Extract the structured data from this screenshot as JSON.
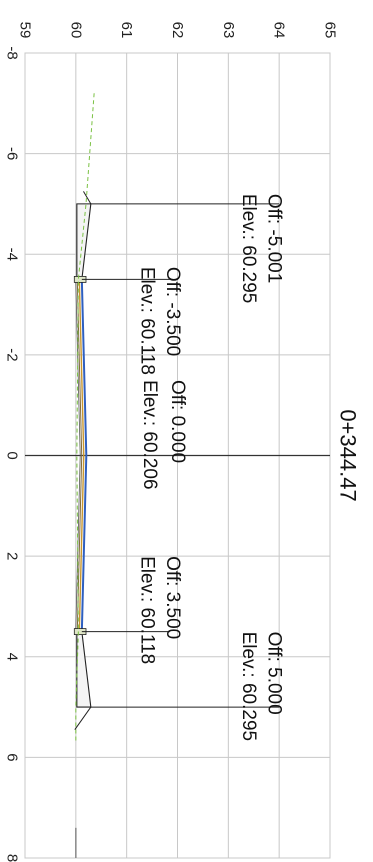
{
  "chart_data": {
    "type": "line",
    "title": "0+344.47",
    "xlabel": "",
    "ylabel": "",
    "grid": true,
    "orientation": "rotated-90-clockwise",
    "xlim": [
      -8,
      8
    ],
    "ylim": [
      59,
      65
    ],
    "x_ticks": [
      "-8",
      "-6",
      "-4",
      "-2",
      "0",
      "2",
      "4",
      "6",
      "8"
    ],
    "y_ticks": [
      "59",
      "60",
      "61",
      "62",
      "63",
      "64",
      "65"
    ],
    "colors": {
      "grid": "#c8c8c8",
      "axis": "#333333",
      "pavement_top": "#2e5fc0",
      "pavement_layer": "#c8962e",
      "ground": "#7ac143",
      "outline": "#222222"
    },
    "series": [
      {
        "values": [
          {
            "x": -5.001,
            "y": 60.295
          },
          {
            "x": -3.5,
            "y": 60.118
          },
          {
            "x": 0.0,
            "y": 60.206
          },
          {
            "x": 3.5,
            "y": 60.118
          },
          {
            "x": 5.0,
            "y": 60.295
          }
        ]
      },
      {
        "values": [
          {
            "x": -7.2,
            "y": 60.36
          },
          {
            "x": -5.0,
            "y": 60.2
          },
          {
            "x": -3.5,
            "y": 60.05
          },
          {
            "x": 0.0,
            "y": 60.02
          },
          {
            "x": 3.5,
            "y": 60.05
          },
          {
            "x": 5.0,
            "y": 60.0
          },
          {
            "x": 5.7,
            "y": 60.0
          }
        ]
      }
    ],
    "annotations": [
      {
        "x": -5.001,
        "y": 60.295,
        "off_text": "Off: -5.001",
        "elev_text": "Elev.: 60.295"
      },
      {
        "x": -3.5,
        "y": 60.118,
        "off_text": "Off: -3.500",
        "elev_text": "Elev.: 60.118"
      },
      {
        "x": 0.0,
        "y": 60.206,
        "off_text": "Off: 0.000",
        "elev_text": "Elev.: 60.206"
      },
      {
        "x": 3.5,
        "y": 60.118,
        "off_text": "Off: 3.500",
        "elev_text": "Elev.: 60.118"
      },
      {
        "x": 5.0,
        "y": 60.295,
        "off_text": "Off: 5.000",
        "elev_text": "Elev.: 60.295"
      }
    ]
  }
}
